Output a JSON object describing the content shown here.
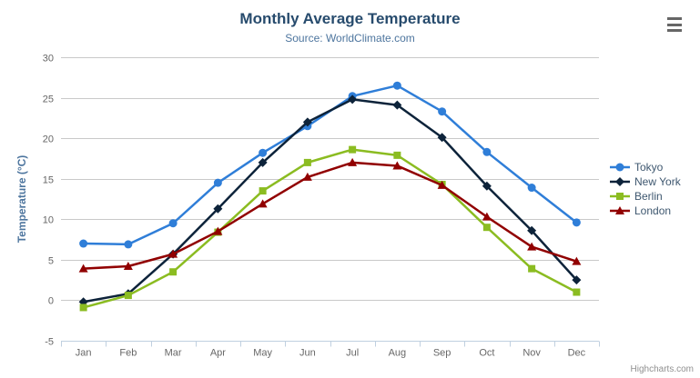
{
  "header": {
    "title": "Monthly Average Temperature",
    "subtitle": "Source: WorldClimate.com"
  },
  "credit_label": "Highcharts.com",
  "export_menu_icon": "hamburger-icon",
  "colors": {
    "title": "#274b6d",
    "subtitle": "#4d759e",
    "axis_labels": "#666666",
    "axis_title": "#4d759e",
    "grid_line": "#C9C9C9",
    "axis_line": "#C0D0E0",
    "legend_text": "#3E576F",
    "credit_text": "#909090",
    "menu_icon": "#666666"
  },
  "chart_data": {
    "type": "line",
    "title": "Monthly Average Temperature",
    "subtitle": "Source: WorldClimate.com",
    "xlabel": "",
    "ylabel": "Temperature (°C)",
    "ylim": [
      -5,
      30
    ],
    "ytick_step": 5,
    "grid": true,
    "legend_position": "right",
    "categories": [
      "Jan",
      "Feb",
      "Mar",
      "Apr",
      "May",
      "Jun",
      "Jul",
      "Aug",
      "Sep",
      "Oct",
      "Nov",
      "Dec"
    ],
    "series": [
      {
        "name": "Tokyo",
        "color": "#2f7ed8",
        "marker": "circle",
        "values": [
          7.0,
          6.9,
          9.5,
          14.5,
          18.2,
          21.5,
          25.2,
          26.5,
          23.3,
          18.3,
          13.9,
          9.6
        ]
      },
      {
        "name": "New York",
        "color": "#0d233a",
        "marker": "diamond",
        "values": [
          -0.2,
          0.8,
          5.7,
          11.3,
          17.0,
          22.0,
          24.8,
          24.1,
          20.1,
          14.1,
          8.6,
          2.5
        ]
      },
      {
        "name": "Berlin",
        "color": "#8bbc21",
        "marker": "square",
        "values": [
          -0.9,
          0.6,
          3.5,
          8.4,
          13.5,
          17.0,
          18.6,
          17.9,
          14.3,
          9.0,
          3.9,
          1.0
        ]
      },
      {
        "name": "London",
        "color": "#910000",
        "marker": "triangle",
        "values": [
          3.9,
          4.2,
          5.7,
          8.5,
          11.9,
          15.2,
          17.0,
          16.6,
          14.2,
          10.3,
          6.6,
          4.8
        ]
      }
    ]
  }
}
